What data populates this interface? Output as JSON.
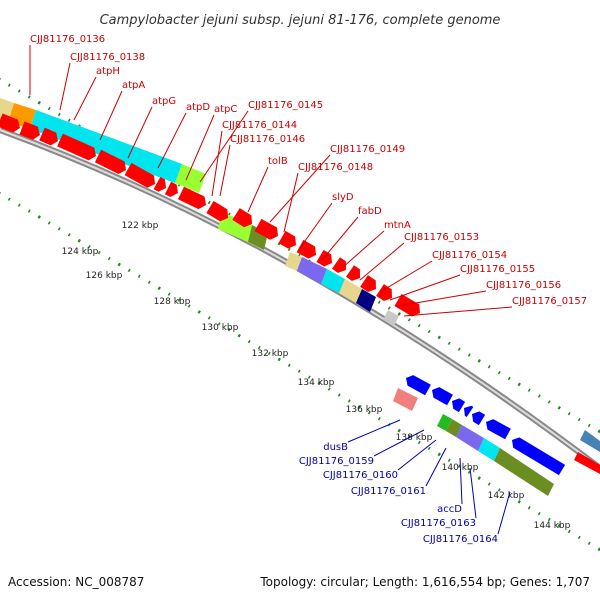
{
  "title": "Campylobacter jejuni subsp. jejuni 81-176, complete genome",
  "footer": {
    "accession": "Accession: NC_008787",
    "summary": "Topology: circular; Length: 1,616,554 bp; Genes: 1,707"
  },
  "colors": {
    "label_forward": "#cc0000",
    "label_reverse": "#0000aa",
    "gene_red": "#ff0000",
    "gene_blue": "#0000ff",
    "cog_cyan": "#00e5ee",
    "cog_orange": "#ff9900",
    "cog_lime": "#99ff33",
    "cog_olive": "#6b8e23",
    "cog_khaki": "#e6d78c",
    "cog_purple": "#7b68ee",
    "cog_navy": "#000080",
    "cog_gray": "#c8c8c8",
    "cog_pink": "#f08080",
    "cog_green": "#22bb22",
    "cog_teal": "#2f8f9f",
    "tick_green": "#228b22"
  },
  "kbp_labels": [
    "122 kbp",
    "124 kbp",
    "126 kbp",
    "128 kbp",
    "130 kbp",
    "132 kbp",
    "134 kbp",
    "136 kbp",
    "138 kbp",
    "140 kbp",
    "142 kbp",
    "144 kbp"
  ],
  "forward_labels": [
    "CJJ81176_0136",
    "CJJ81176_0138",
    "atpH",
    "atpA",
    "atpG",
    "atpD",
    "atpC",
    "CJJ81176_0145",
    "CJJ81176_0144",
    "CJJ81176_0146",
    "tolB",
    "CJJ81176_0149",
    "CJJ81176_0148",
    "slyD",
    "fabD",
    "mtnA",
    "CJJ81176_0153",
    "CJJ81176_0154",
    "CJJ81176_0155",
    "CJJ81176_0156",
    "CJJ81176_0157"
  ],
  "reverse_labels": [
    "dusB",
    "CJJ81176_0159",
    "CJJ81176_0160",
    "CJJ81176_0161",
    "accD",
    "CJJ81176_0163",
    "CJJ81176_0164"
  ]
}
